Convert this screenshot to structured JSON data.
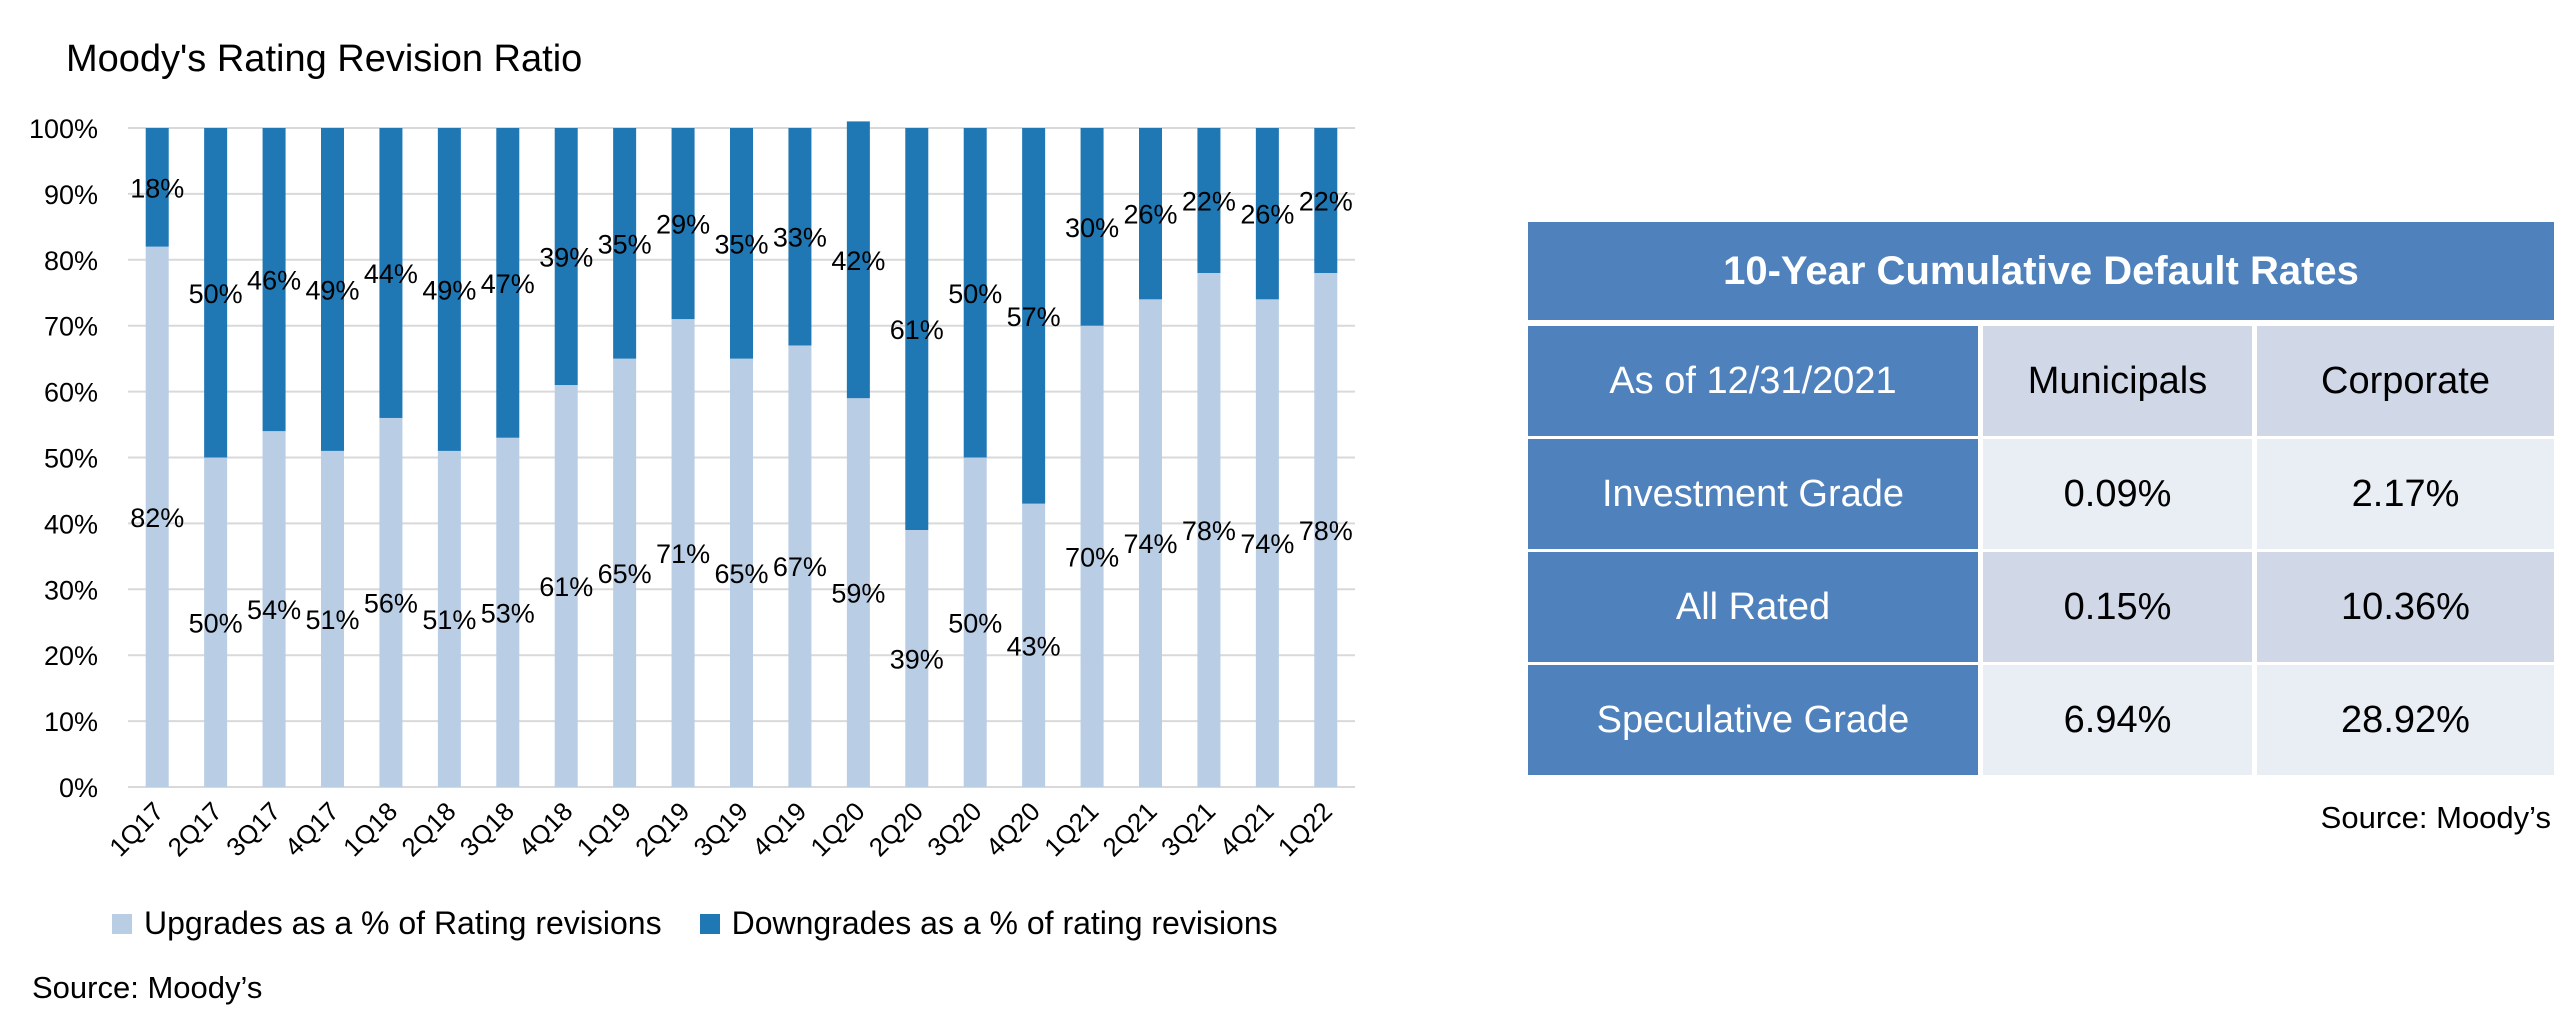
{
  "chart_data": {
    "type": "bar",
    "stacked": true,
    "title": "Moody's Rating Revision Ratio",
    "categories": [
      "1Q17",
      "2Q17",
      "3Q17",
      "4Q17",
      "1Q18",
      "2Q18",
      "3Q18",
      "4Q18",
      "1Q19",
      "2Q19",
      "3Q19",
      "4Q19",
      "1Q20",
      "2Q20",
      "3Q20",
      "4Q20",
      "1Q21",
      "2Q21",
      "3Q21",
      "4Q21",
      "1Q22"
    ],
    "series": [
      {
        "name": "Upgrades as a % of Rating revisions",
        "color": "#b9cde5",
        "values": [
          82,
          50,
          54,
          51,
          56,
          51,
          53,
          61,
          65,
          71,
          65,
          67,
          59,
          39,
          50,
          43,
          70,
          74,
          78,
          74,
          78
        ]
      },
      {
        "name": "Downgrades as a % of rating revisions",
        "color": "#1f77b4",
        "values": [
          18,
          50,
          46,
          49,
          44,
          49,
          47,
          39,
          35,
          29,
          35,
          33,
          42,
          61,
          50,
          57,
          30,
          26,
          22,
          26,
          22
        ]
      }
    ],
    "ylim": [
      0,
      100
    ],
    "yticks": [
      "0%",
      "10%",
      "20%",
      "30%",
      "40%",
      "50%",
      "60%",
      "70%",
      "80%",
      "90%",
      "100%"
    ],
    "grid": true,
    "legend_position": "bottom",
    "data_label_suffix": "%"
  },
  "chart_source": "Source: Moody’s",
  "table": {
    "title": "10-Year Cumulative Default Rates",
    "header": [
      "As of 12/31/2021",
      "Municipals",
      "Corporate"
    ],
    "rows": [
      [
        "Investment Grade",
        "0.09%",
        "2.17%"
      ],
      [
        "All Rated",
        "0.15%",
        "10.36%"
      ],
      [
        "Speculative Grade",
        "6.94%",
        "28.92%"
      ]
    ],
    "source": "Source: Moody’s"
  }
}
